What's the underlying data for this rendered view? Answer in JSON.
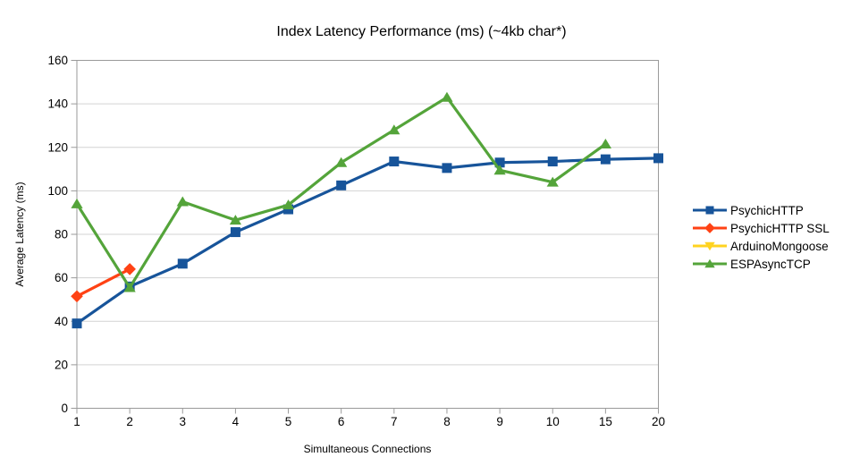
{
  "chart_data": {
    "type": "line",
    "title": "Index Latency Performance (ms) (~4kb char*)",
    "xlabel": "Simultaneous Connections",
    "ylabel": "Average Latency (ms)",
    "categories": [
      "1",
      "2",
      "3",
      "4",
      "5",
      "6",
      "7",
      "8",
      "9",
      "10",
      "15",
      "20"
    ],
    "ylim": [
      0,
      160
    ],
    "ytick_step": 20,
    "grid": "horizontal-only",
    "legend_position": "right",
    "background_color": "#ffffff",
    "gridline_color": "#d3d3d3",
    "axis_color": "#9a9a9a",
    "series": [
      {
        "name": "PsychicHTTP",
        "color": "#17549a",
        "marker": "square",
        "values": [
          39,
          56,
          66.5,
          81,
          91.5,
          102.5,
          113.5,
          110.5,
          113,
          113.5,
          114.5,
          115
        ]
      },
      {
        "name": "PsychicHTTP SSL",
        "color": "#ff4214",
        "marker": "diamond",
        "values": [
          51.5,
          64,
          null,
          null,
          null,
          null,
          null,
          null,
          null,
          null,
          null,
          null
        ]
      },
      {
        "name": "ArduinoMongoose",
        "color": "#ffd320",
        "marker": "triangle-down",
        "values": [
          null,
          null,
          null,
          null,
          null,
          null,
          null,
          null,
          null,
          null,
          null,
          null
        ]
      },
      {
        "name": "ESPAsyncTCP",
        "color": "#54a43a",
        "marker": "triangle-up",
        "values": [
          94,
          55.5,
          95,
          86.5,
          93.5,
          113,
          128,
          143,
          109.5,
          104,
          121.5,
          null
        ]
      }
    ]
  }
}
